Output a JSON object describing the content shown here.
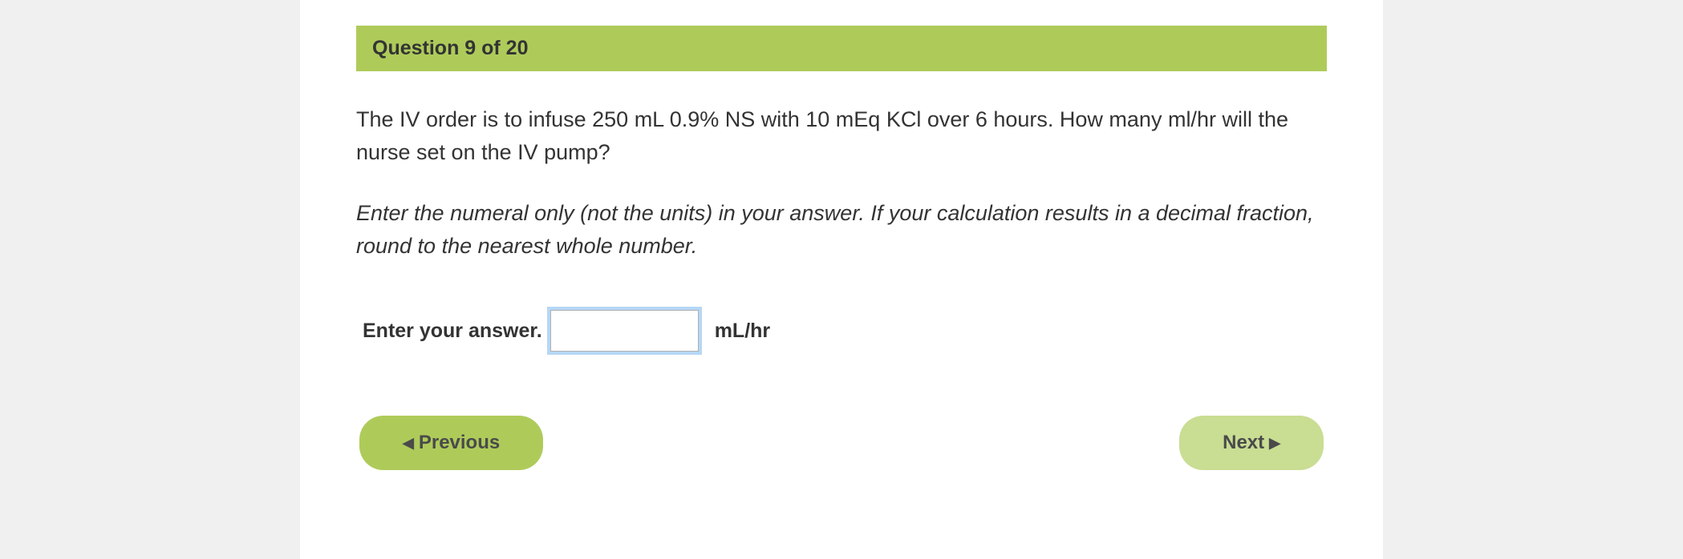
{
  "header": {
    "title": "Question 9 of 20"
  },
  "question": {
    "text": "The IV order is to infuse 250 mL 0.9% NS with 10 mEq KCl over 6 hours. How many ml/hr will the nurse set on the IV pump?",
    "instruction": "Enter the numeral only (not the units) in your answer. If your calculation results in a decimal fraction, round to the nearest whole number."
  },
  "answer": {
    "label": "Enter your answer.",
    "value": "",
    "unit": "mL/hr"
  },
  "nav": {
    "previous_label": "Previous",
    "next_label": "Next"
  },
  "colors": {
    "header_bg": "#aecb5a",
    "prev_bg": "#aecb5a",
    "next_bg": "#c9dd93",
    "page_bg": "#f0f0f0",
    "content_bg": "#ffffff",
    "text": "#333333",
    "input_focus": "#b6d7f5"
  }
}
